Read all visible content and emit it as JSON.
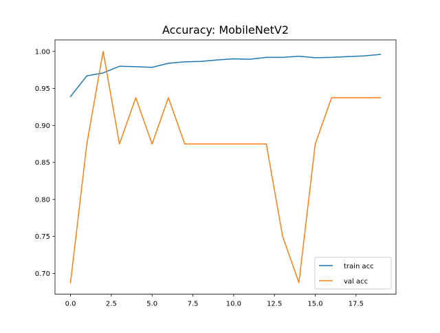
{
  "chart_data": {
    "type": "line",
    "title": "Accuracy: MobileNetV2",
    "xlabel": "",
    "ylabel": "",
    "x": [
      0,
      1,
      2,
      3,
      4,
      5,
      6,
      7,
      8,
      9,
      10,
      11,
      12,
      13,
      14,
      15,
      16,
      17,
      18,
      19
    ],
    "series": [
      {
        "name": "train acc",
        "color": "#1f77b4",
        "values": [
          0.939,
          0.967,
          0.971,
          0.98,
          0.9795,
          0.9785,
          0.984,
          0.986,
          0.9865,
          0.9885,
          0.99,
          0.9895,
          0.992,
          0.992,
          0.9935,
          0.9915,
          0.992,
          0.993,
          0.994,
          0.996
        ]
      },
      {
        "name": "val acc",
        "color": "#ff7f0e",
        "values": [
          0.6875,
          0.875,
          1.0,
          0.875,
          0.9375,
          0.875,
          0.9375,
          0.875,
          0.875,
          0.875,
          0.875,
          0.875,
          0.875,
          0.75,
          0.6875,
          0.875,
          0.9375,
          0.9375,
          0.9375,
          0.9375
        ]
      }
    ],
    "xlim": [
      -0.95,
      19.95
    ],
    "ylim": [
      0.6719,
      1.0156
    ],
    "xticks": [
      0,
      2.5,
      5,
      7.5,
      10,
      12.5,
      15,
      17.5
    ],
    "xtick_labels": [
      "0.0",
      "2.5",
      "5.0",
      "7.5",
      "10.0",
      "12.5",
      "15.0",
      "17.5"
    ],
    "yticks": [
      0.7,
      0.75,
      0.8,
      0.85,
      0.9,
      0.95,
      1.0
    ],
    "ytick_labels": [
      "0.70",
      "0.75",
      "0.80",
      "0.85",
      "0.90",
      "0.95",
      "1.00"
    ],
    "grid": false,
    "legend_position": "lower-right"
  }
}
